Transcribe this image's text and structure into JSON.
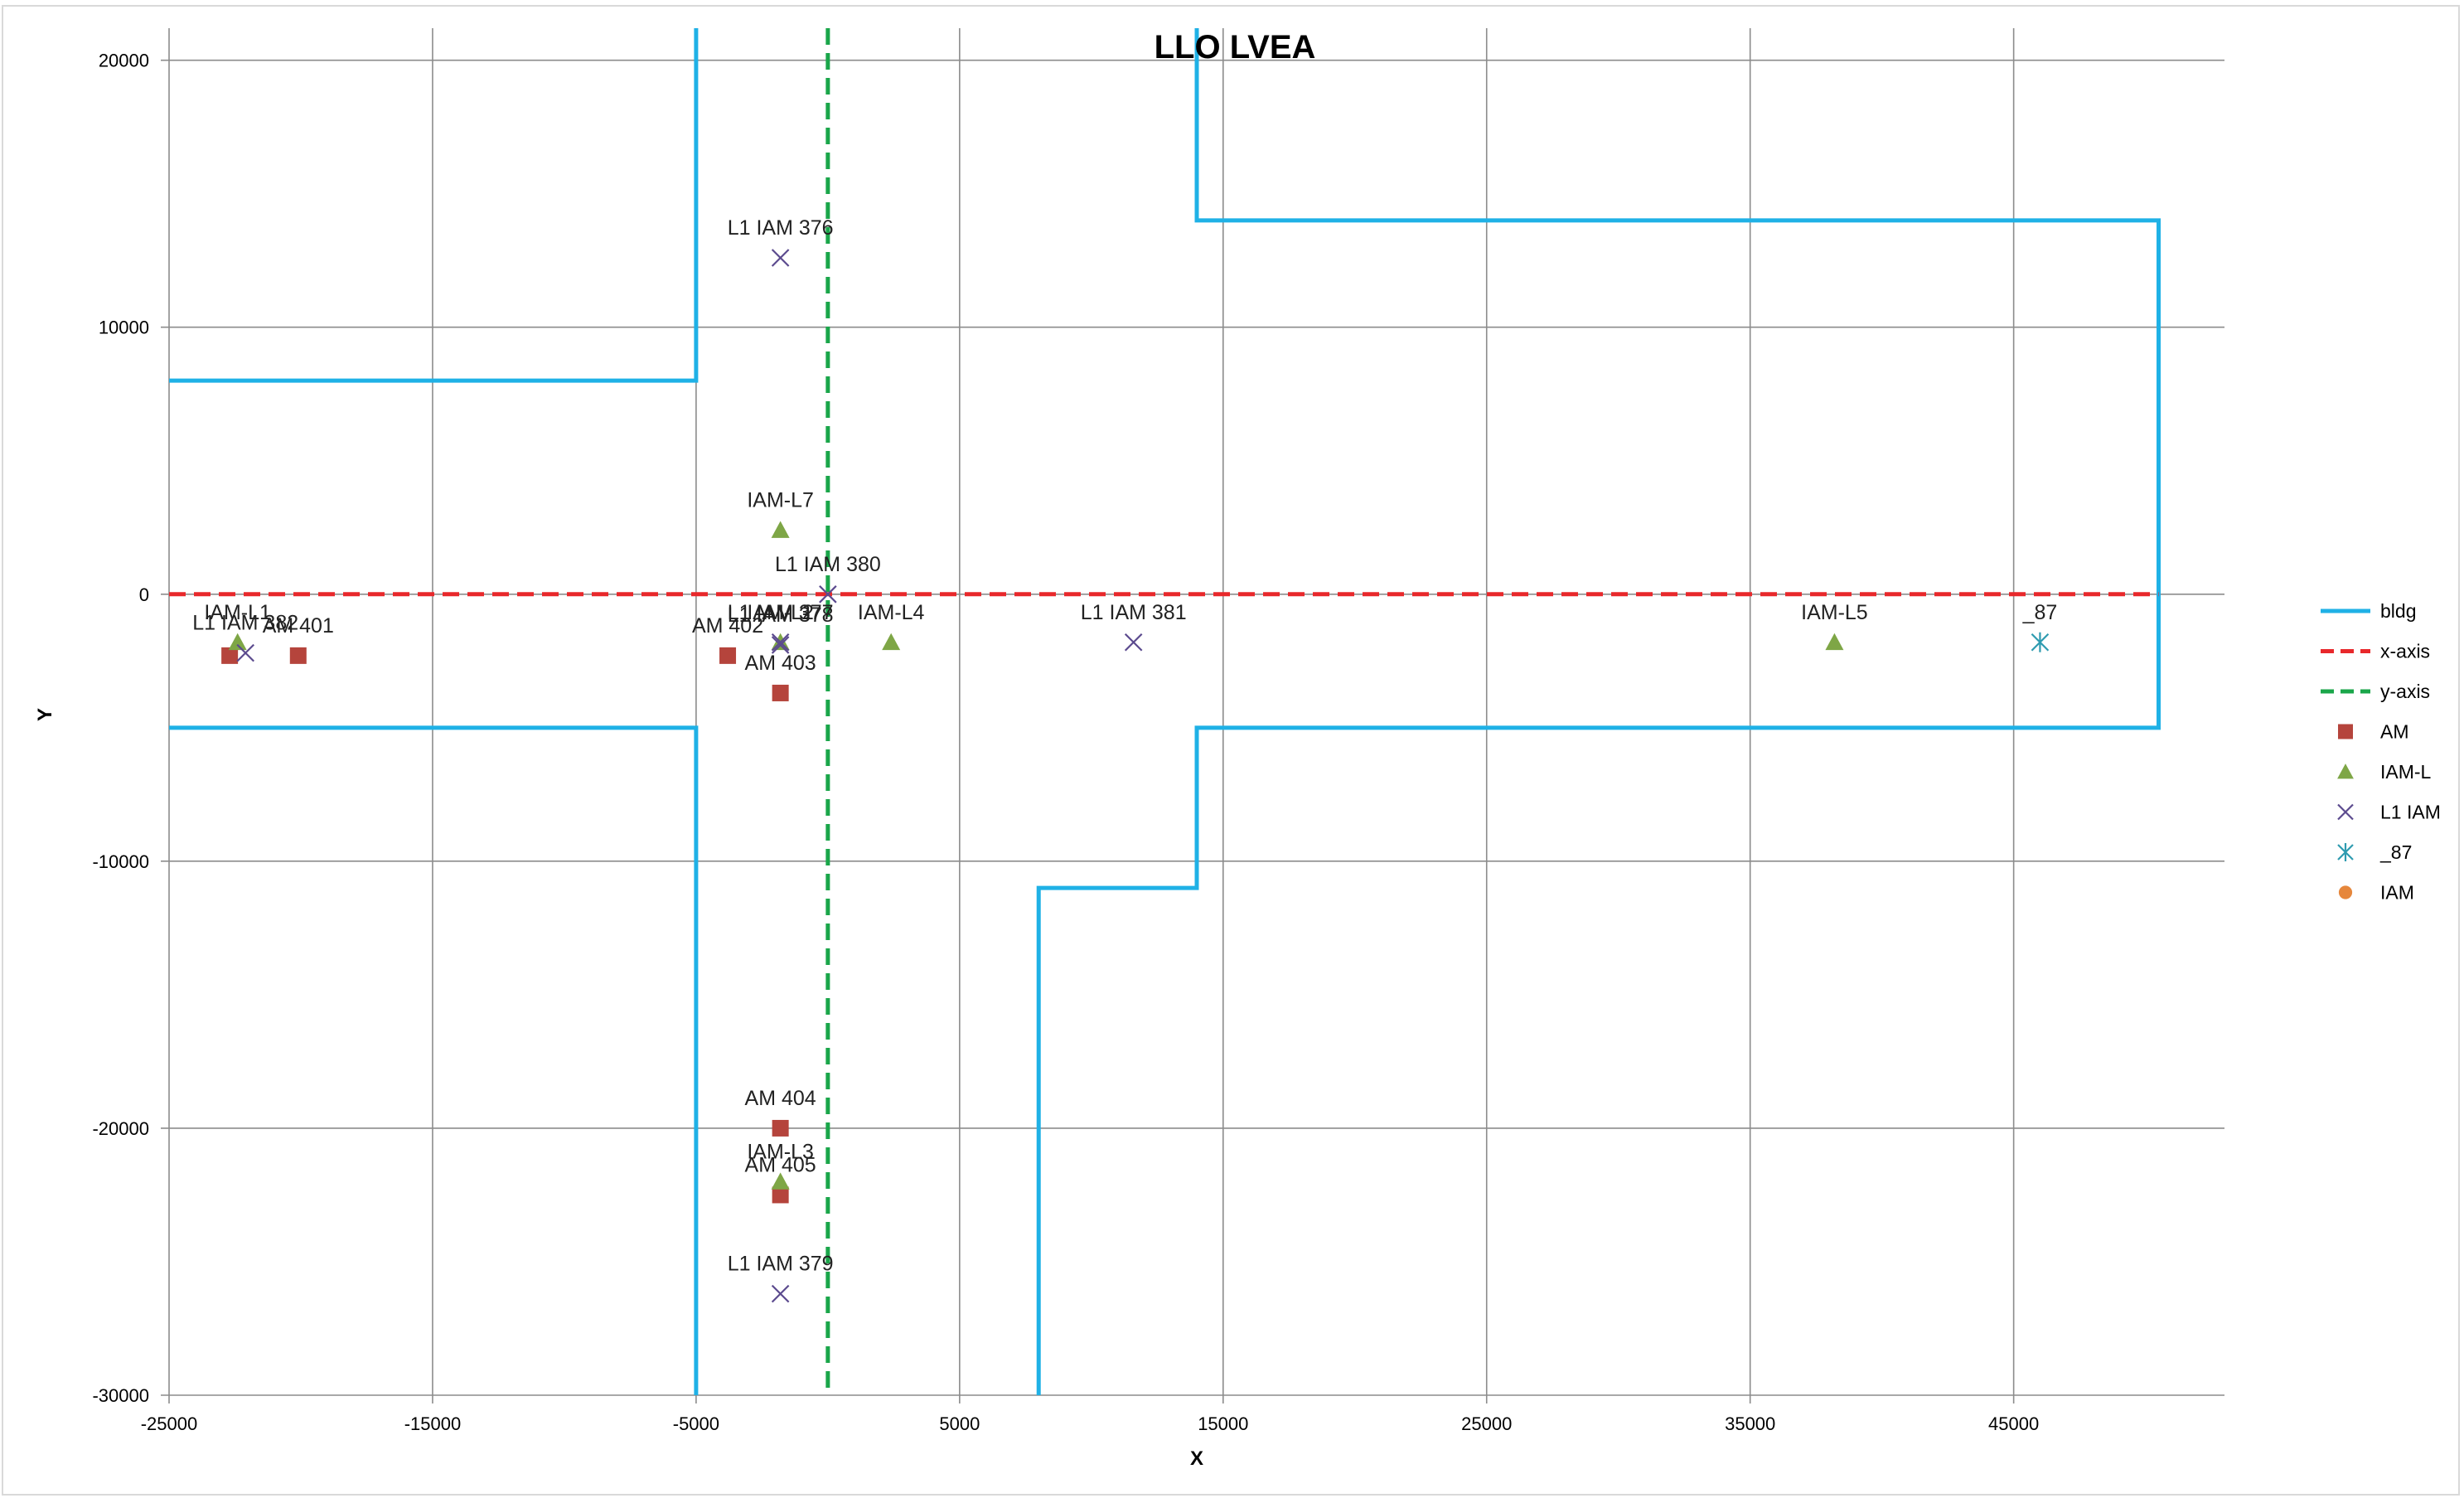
{
  "chart_data": {
    "type": "scatter",
    "title": "LLO LVEA",
    "xlabel": "X",
    "ylabel": "Y",
    "xlim": [
      -25000,
      53000
    ],
    "ylim": [
      -30000,
      21200
    ],
    "xticks": [
      -25000,
      -15000,
      -5000,
      5000,
      15000,
      25000,
      35000,
      45000
    ],
    "yticks": [
      20000,
      10000,
      0,
      -10000,
      -20000,
      -30000
    ],
    "grid": true,
    "legend_position": "right",
    "colors": {
      "bldg": "#1fb1e6",
      "x-axis": "#e8282b",
      "y-axis": "#1aa64a",
      "AM": "#b5443c",
      "IAM-L": "#7ea646",
      "L1 IAM": "#5b4a8e",
      "_87": "#2e9bb0",
      "IAM": "#e6873c"
    },
    "legend": [
      "bldg",
      "x-axis",
      "y-axis",
      "AM",
      "IAM-L",
      "L1 IAM",
      "_87",
      "IAM"
    ],
    "series": [
      {
        "name": "bldg",
        "kind": "line",
        "segments": [
          [
            [
              -25000,
              8000
            ],
            [
              -5000,
              8000
            ],
            [
              -5000,
              21200
            ]
          ],
          [
            [
              -25000,
              -5000
            ],
            [
              -5000,
              -5000
            ],
            [
              -5000,
              -30000
            ]
          ],
          [
            [
              14000,
              21200
            ],
            [
              14000,
              14000
            ],
            [
              50500,
              14000
            ],
            [
              50500,
              -5000
            ],
            [
              14000,
              -5000
            ],
            [
              14000,
              -11000
            ],
            [
              8000,
              -11000
            ],
            [
              8000,
              -30000
            ]
          ]
        ]
      },
      {
        "name": "x-axis",
        "kind": "dashed",
        "points": [
          [
            -25000,
            0
          ],
          [
            50500,
            0
          ]
        ]
      },
      {
        "name": "y-axis",
        "kind": "dashed",
        "points": [
          [
            0,
            21200
          ],
          [
            0,
            -30000
          ]
        ]
      },
      {
        "name": "AM",
        "kind": "marker",
        "points": [
          {
            "x": -22700,
            "y": -2300,
            "label": ""
          },
          {
            "x": -20100,
            "y": -2300,
            "label": "AM 401"
          },
          {
            "x": -3800,
            "y": -2300,
            "label": "AM 402"
          },
          {
            "x": -1800,
            "y": -3700,
            "label": "AM 403"
          },
          {
            "x": -1800,
            "y": -20000,
            "label": "AM 404"
          },
          {
            "x": -1800,
            "y": -22500,
            "label": "AM 405"
          }
        ]
      },
      {
        "name": "IAM-L",
        "kind": "marker",
        "points": [
          {
            "x": -22400,
            "y": -1800,
            "label": "IAM-L1"
          },
          {
            "x": -1800,
            "y": 2400,
            "label": "IAM-L7"
          },
          {
            "x": -1800,
            "y": -1800,
            "label": "IAM-L2"
          },
          {
            "x": 2400,
            "y": -1800,
            "label": "IAM-L4"
          },
          {
            "x": 38200,
            "y": -1800,
            "label": "IAM-L5"
          },
          {
            "x": -1800,
            "y": -22000,
            "label": "IAM-L3"
          }
        ]
      },
      {
        "name": "L1 IAM",
        "kind": "marker",
        "points": [
          {
            "x": -22100,
            "y": -2200,
            "label": "L1 IAM 382"
          },
          {
            "x": -1800,
            "y": 12600,
            "label": "L1 IAM 376"
          },
          {
            "x": -1800,
            "y": -1800,
            "label": "L1 IAM 377"
          },
          {
            "x": -1800,
            "y": -1900,
            "label": "L1 IAM 378"
          },
          {
            "x": 0,
            "y": 0,
            "label": "L1 IAM 380"
          },
          {
            "x": 11600,
            "y": -1800,
            "label": "L1 IAM 381"
          },
          {
            "x": -1800,
            "y": -26200,
            "label": "L1 IAM 379"
          }
        ]
      },
      {
        "name": "_87",
        "kind": "marker",
        "points": [
          {
            "x": 46000,
            "y": -1800,
            "label": "_87"
          }
        ]
      },
      {
        "name": "IAM",
        "kind": "marker",
        "points": []
      }
    ]
  }
}
